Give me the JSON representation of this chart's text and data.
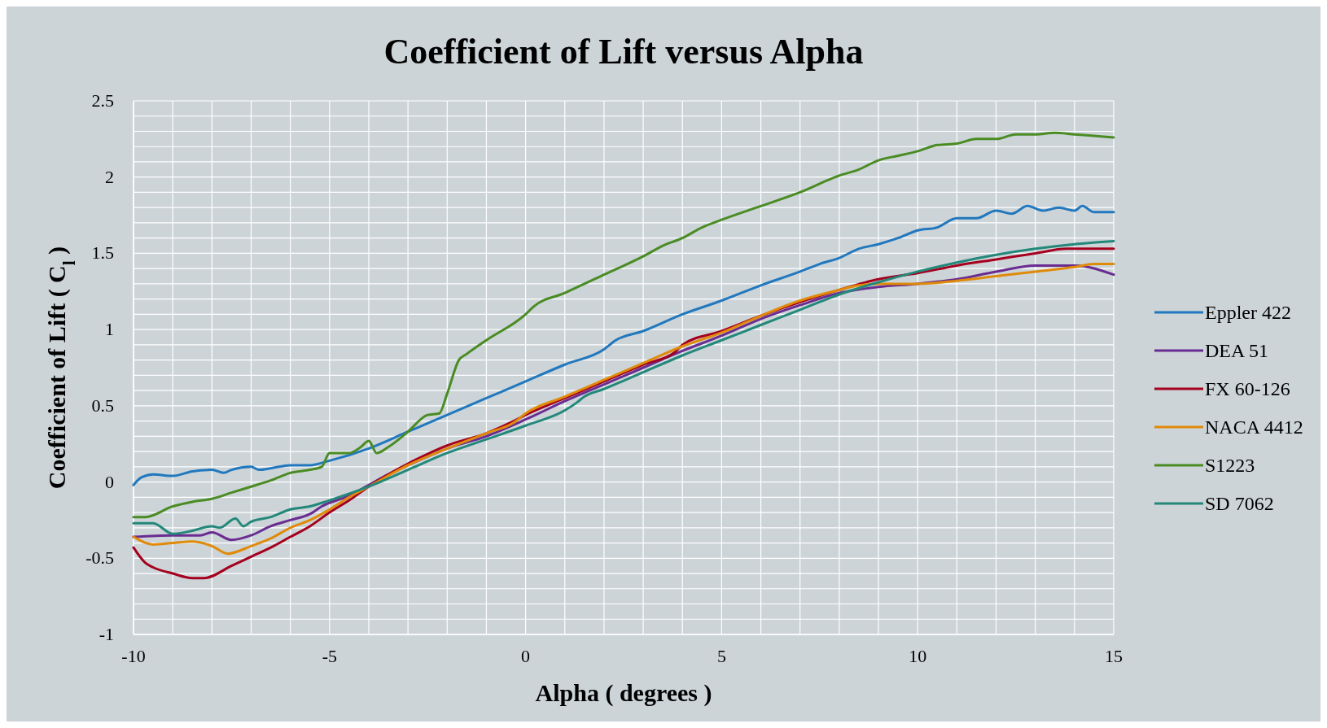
{
  "chart_data": {
    "type": "line",
    "title": "Coefficient of Lift versus Alpha",
    "xlabel": "Alpha ( degrees )",
    "ylabel": "Coefficient of Lift ( C$_{l}$ )",
    "xlim": [
      -10,
      15
    ],
    "ylim": [
      -1,
      2.5
    ],
    "xticks": [
      -10,
      {
        "value": -9,
        "label": null
      },
      {
        "value": -8,
        "label": null
      },
      {
        "value": -7,
        "label": null
      },
      {
        "value": -6,
        "label": null
      },
      -5,
      {
        "value": -4,
        "label": null
      },
      {
        "value": -3,
        "label": null
      },
      {
        "value": -2,
        "label": null
      },
      {
        "value": -1,
        "label": null
      },
      0,
      {
        "value": 1,
        "label": null
      },
      {
        "value": 2,
        "label": null
      },
      {
        "value": 3,
        "label": null
      },
      {
        "value": 4,
        "label": null
      },
      5,
      {
        "value": 6,
        "label": null
      },
      {
        "value": 7,
        "label": null
      },
      {
        "value": 8,
        "label": null
      },
      {
        "value": 9,
        "label": null
      },
      10,
      {
        "value": 11,
        "label": null
      },
      {
        "value": 12,
        "label": null
      },
      {
        "value": 13,
        "label": null
      },
      {
        "value": 14,
        "label": null
      },
      15
    ],
    "yticks": [
      -1,
      {
        "value": -0.9,
        "label": null
      },
      {
        "value": -0.8,
        "label": null
      },
      {
        "value": -0.7,
        "label": null
      },
      {
        "value": -0.6,
        "label": null
      },
      -0.5,
      {
        "value": -0.4,
        "label": null
      },
      {
        "value": -0.3,
        "label": null
      },
      {
        "value": -0.2,
        "label": null
      },
      {
        "value": -0.1,
        "label": null
      },
      0,
      {
        "value": 0.1,
        "label": null
      },
      {
        "value": 0.2,
        "label": null
      },
      {
        "value": 0.3,
        "label": null
      },
      {
        "value": 0.4,
        "label": null
      },
      0.5,
      {
        "value": 0.6,
        "label": null
      },
      {
        "value": 0.7,
        "label": null
      },
      {
        "value": 0.8,
        "label": null
      },
      {
        "value": 0.9,
        "label": null
      },
      1,
      {
        "value": 1.1,
        "label": null
      },
      {
        "value": 1.2,
        "label": null
      },
      {
        "value": 1.3,
        "label": null
      },
      {
        "value": 1.4,
        "label": null
      },
      1.5,
      {
        "value": 1.6,
        "label": null
      },
      {
        "value": 1.7,
        "label": null
      },
      {
        "value": 1.8,
        "label": null
      },
      {
        "value": 1.9,
        "label": null
      },
      2,
      {
        "value": 2.1,
        "label": null
      },
      {
        "value": 2.2,
        "label": null
      },
      {
        "value": 2.3,
        "label": null
      },
      {
        "value": 2.4,
        "label": null
      },
      2.5
    ],
    "grid": true,
    "legend": "right",
    "marker": "none",
    "line_style": "solid",
    "series": [
      {
        "name": "Eppler 422",
        "color": "#2178be",
        "x": [
          -10,
          -9.8,
          -9.5,
          -9,
          -8.5,
          -8,
          -7.7,
          -7.5,
          -7,
          -6.8,
          -6.5,
          -6,
          -5.5,
          -5,
          -4,
          -3,
          -2,
          -1,
          0,
          1,
          2,
          2.3,
          3,
          4,
          5,
          6,
          7,
          7.5,
          8,
          8.5,
          9,
          9.5,
          10,
          10.5,
          11,
          11.5,
          12,
          12.4,
          12.8,
          13.2,
          13.6,
          14,
          14.2,
          14.5,
          15
        ],
        "values": [
          -0.02,
          0.03,
          0.05,
          0.04,
          0.07,
          0.08,
          0.06,
          0.08,
          0.1,
          0.08,
          0.09,
          0.11,
          0.11,
          0.14,
          0.22,
          0.33,
          0.44,
          0.55,
          0.66,
          0.77,
          0.87,
          0.93,
          0.99,
          1.1,
          1.19,
          1.29,
          1.38,
          1.43,
          1.47,
          1.53,
          1.56,
          1.6,
          1.65,
          1.67,
          1.73,
          1.73,
          1.78,
          1.76,
          1.81,
          1.78,
          1.8,
          1.78,
          1.81,
          1.77,
          1.77
        ]
      },
      {
        "name": "DEA 51",
        "color": "#6a2c91",
        "x": [
          -10,
          -9,
          -8.3,
          -8,
          -7.5,
          -7,
          -6.5,
          -6,
          -5.5,
          -5.2,
          -4.5,
          -4,
          -3.5,
          -3,
          -2,
          -1,
          0,
          1,
          2,
          3,
          4,
          5,
          6,
          7,
          8,
          9,
          10,
          11,
          12,
          13,
          14,
          15
        ],
        "values": [
          -0.36,
          -0.35,
          -0.35,
          -0.33,
          -0.38,
          -0.35,
          -0.29,
          -0.25,
          -0.21,
          -0.16,
          -0.09,
          -0.02,
          0.05,
          0.11,
          0.22,
          0.3,
          0.41,
          0.53,
          0.64,
          0.75,
          0.86,
          0.96,
          1.07,
          1.16,
          1.24,
          1.28,
          1.3,
          1.33,
          1.38,
          1.42,
          1.42,
          1.36
        ]
      },
      {
        "name": "FX 60-126",
        "color": "#a5001e",
        "x": [
          -10,
          -9.7,
          -9.5,
          -9,
          -8.5,
          -8.2,
          -7.5,
          -7,
          -6.5,
          -6,
          -5.5,
          -5,
          -4.5,
          -4,
          -3.5,
          -3,
          -2,
          -1,
          -0.3,
          0,
          1,
          2,
          3,
          3.8,
          4,
          5,
          6,
          7,
          8,
          9,
          10,
          11,
          12,
          13,
          13.8,
          15
        ],
        "values": [
          -0.43,
          -0.53,
          -0.56,
          -0.6,
          -0.63,
          -0.63,
          -0.55,
          -0.49,
          -0.43,
          -0.36,
          -0.29,
          -0.2,
          -0.12,
          -0.03,
          0.05,
          0.12,
          0.24,
          0.32,
          0.4,
          0.44,
          0.55,
          0.66,
          0.77,
          0.85,
          0.9,
          0.99,
          1.09,
          1.18,
          1.26,
          1.33,
          1.37,
          1.42,
          1.46,
          1.5,
          1.53,
          1.53
        ]
      },
      {
        "name": "NACA 4412",
        "color": "#e08a0a",
        "x": [
          -10,
          -9.5,
          -9,
          -8.5,
          -8,
          -7.6,
          -7,
          -6.5,
          -6,
          -5.5,
          -5,
          -4.5,
          -4,
          -3,
          -2,
          -1,
          -0.3,
          0,
          1,
          2,
          3,
          4,
          5,
          6,
          7,
          8,
          8.5,
          9,
          10,
          11,
          12,
          13,
          14,
          14.5,
          15
        ],
        "values": [
          -0.36,
          -0.41,
          -0.4,
          -0.39,
          -0.42,
          -0.47,
          -0.42,
          -0.37,
          -0.3,
          -0.25,
          -0.18,
          -0.1,
          -0.03,
          0.11,
          0.22,
          0.32,
          0.39,
          0.45,
          0.56,
          0.67,
          0.78,
          0.89,
          0.98,
          1.09,
          1.19,
          1.26,
          1.29,
          1.3,
          1.3,
          1.32,
          1.35,
          1.38,
          1.41,
          1.43,
          1.43
        ]
      },
      {
        "name": "S1223",
        "color": "#4a8c23",
        "x": [
          -10,
          -9.7,
          -9,
          -8.5,
          -8,
          -7.5,
          -7,
          -6.5,
          -6,
          -5.5,
          -5.2,
          -5,
          -4.5,
          -4.2,
          -4,
          -3.8,
          -3.5,
          -3,
          -2.5,
          -2.2,
          -2,
          -1.7,
          -1.5,
          -1,
          0,
          0.2,
          1,
          2,
          3,
          3.5,
          4,
          4.5,
          5,
          6,
          7,
          8,
          8.5,
          9,
          9.5,
          10,
          10.5,
          11,
          11.5,
          12,
          12.5,
          13,
          13.5,
          14,
          14.5,
          15
        ],
        "values": [
          -0.23,
          -0.23,
          -0.16,
          -0.13,
          -0.11,
          -0.07,
          -0.03,
          0.01,
          0.06,
          0.08,
          0.1,
          0.19,
          0.19,
          0.23,
          0.27,
          0.19,
          0.23,
          0.33,
          0.44,
          0.45,
          0.58,
          0.8,
          0.84,
          0.93,
          1.1,
          1.15,
          1.24,
          1.36,
          1.48,
          1.55,
          1.6,
          1.67,
          1.72,
          1.81,
          1.9,
          2.01,
          2.05,
          2.11,
          2.14,
          2.17,
          2.21,
          2.22,
          2.25,
          2.25,
          2.28,
          2.28,
          2.29,
          2.28,
          2.27,
          2.26
        ]
      },
      {
        "name": "SD 7062",
        "color": "#23887a",
        "x": [
          -10,
          -9.5,
          -9,
          -8.5,
          -8,
          -7.8,
          -7.4,
          -7.2,
          -7,
          -6.5,
          -6,
          -5.5,
          -5,
          -4,
          -3,
          -2,
          -1,
          0,
          1,
          1.3,
          1.5,
          2,
          3,
          4,
          5,
          6,
          7,
          8,
          9,
          10,
          11,
          12,
          13,
          14,
          15
        ],
        "values": [
          -0.27,
          -0.27,
          -0.34,
          -0.32,
          -0.29,
          -0.3,
          -0.24,
          -0.29,
          -0.26,
          -0.23,
          -0.18,
          -0.16,
          -0.12,
          -0.03,
          0.08,
          0.19,
          0.28,
          0.37,
          0.47,
          0.52,
          0.56,
          0.61,
          0.72,
          0.83,
          0.93,
          1.03,
          1.13,
          1.23,
          1.31,
          1.38,
          1.44,
          1.49,
          1.53,
          1.56,
          1.58
        ]
      }
    ]
  }
}
